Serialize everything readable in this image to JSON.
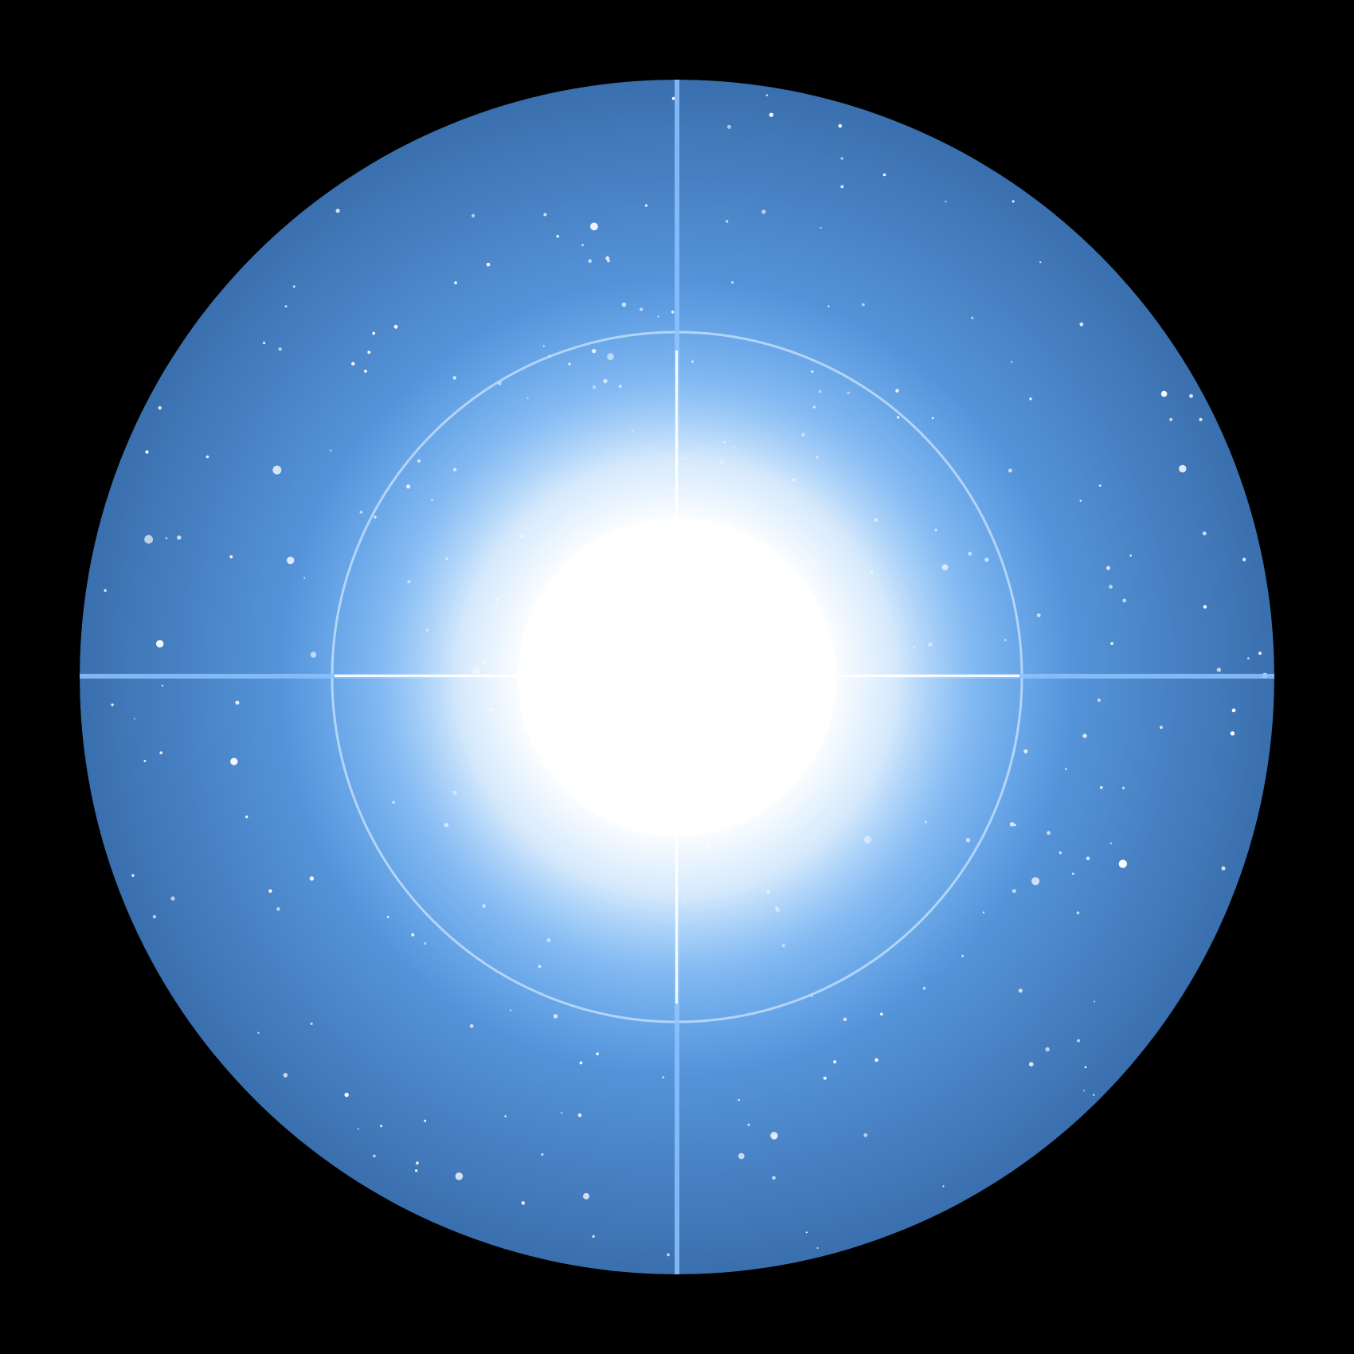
{
  "image": {
    "subject": "bright-star-with-diffraction-spikes-in-circular-field",
    "colors": {
      "background": "#000000",
      "field_edge": "#3a6fae",
      "field_mid": "#5a9ae0",
      "glow": "#a9d4ff",
      "core": "#ffffff",
      "spike": "#8cc2ff",
      "ring": "#e6f3ff",
      "stars": "#ffffff"
    }
  }
}
